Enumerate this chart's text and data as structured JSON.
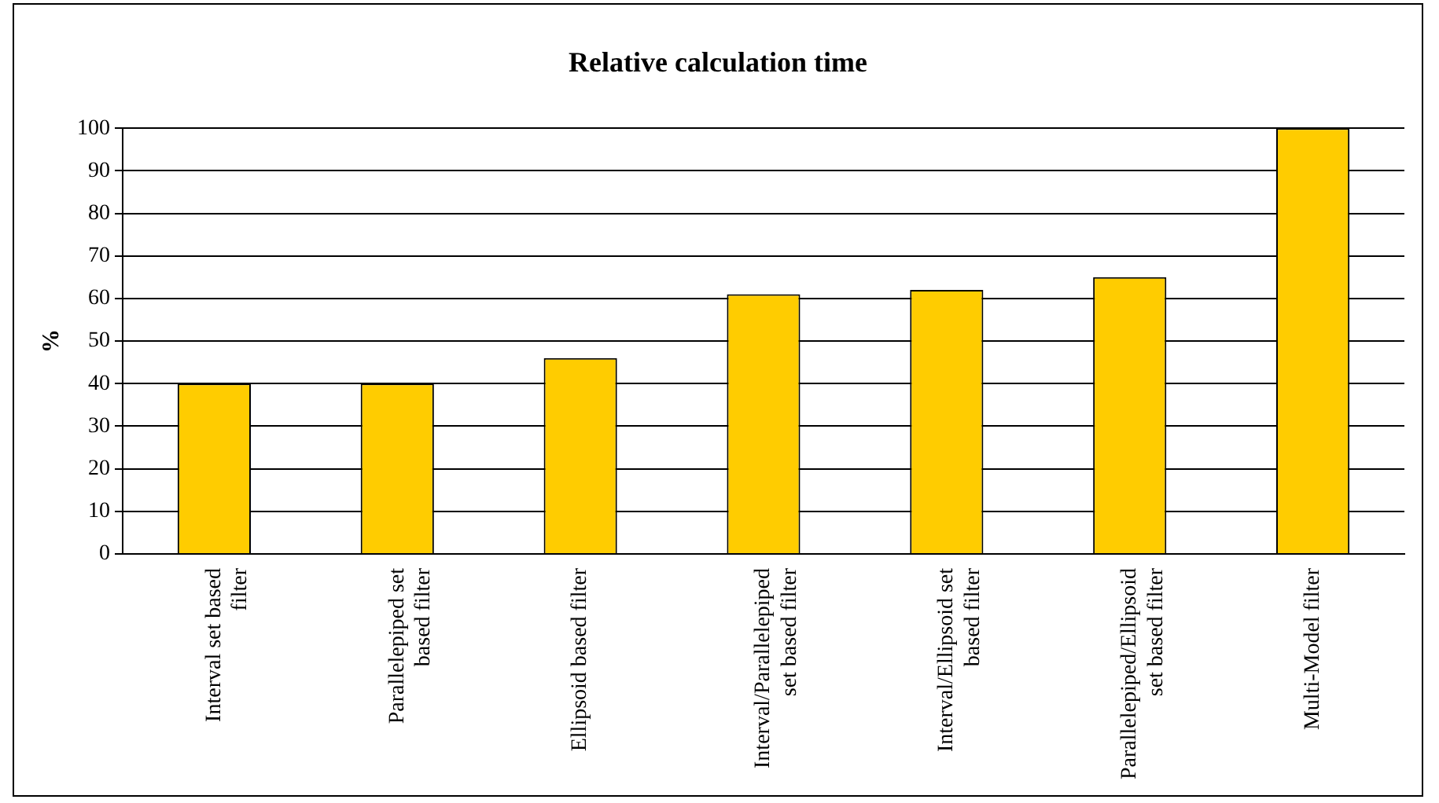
{
  "chart_data": {
    "type": "bar",
    "title": "Relative calculation time",
    "ylabel": "%",
    "categories": [
      "Interval set based filter",
      "Parallelepiped set based filter",
      "Ellipsoid based filter",
      "Interval/Parallelepiped set based filter",
      "Interval/Ellipsoid set based filter",
      "Parallelepiped/Ellipsoid set based filter",
      "Multi-Model filter"
    ],
    "values": [
      40,
      40,
      46,
      61,
      62,
      65,
      100
    ],
    "color": "#ffcc00",
    "ylim": [
      0,
      100
    ],
    "yticks": [
      0,
      10,
      20,
      30,
      40,
      50,
      60,
      70,
      80,
      90,
      100
    ],
    "grid": "y",
    "legend": false
  }
}
